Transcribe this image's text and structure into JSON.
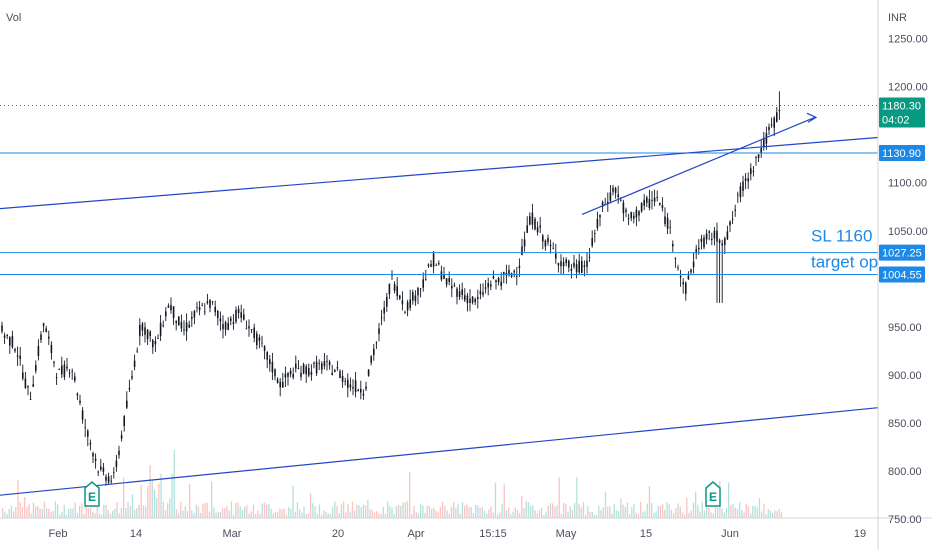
{
  "chart_data": {
    "type": "candlestick",
    "volume_label": "Vol",
    "currency": "INR",
    "ylim": [
      718,
      1290
    ],
    "y_ticks": [
      {
        "value": 1250,
        "label": "1250.00"
      },
      {
        "value": 1200,
        "label": "1200.00"
      },
      {
        "value": 1100,
        "label": "1100.00"
      },
      {
        "value": 1050,
        "label": "1050.00"
      },
      {
        "value": 950,
        "label": "950.00"
      },
      {
        "value": 900,
        "label": "900.00"
      },
      {
        "value": 850,
        "label": "850.00"
      },
      {
        "value": 800,
        "label": "800.00"
      },
      {
        "value": 750,
        "label": "750.00"
      }
    ],
    "x_ticks": [
      "Feb",
      "14",
      "Mar",
      "20",
      "Apr",
      "15:15",
      "May",
      "15",
      "Jun",
      "19"
    ],
    "last_price": {
      "value": 1180.3,
      "label": "1180.30",
      "countdown": "04:02",
      "color": "#089981"
    },
    "horizontal_levels": [
      {
        "value": 1130.9,
        "label": "1130.90"
      },
      {
        "value": 1027.25,
        "label": "1027.25"
      },
      {
        "value": 1004.55,
        "label": "1004.55"
      }
    ],
    "annotations": [
      "SL 1160",
      "target op"
    ],
    "earnings_markers": [
      "E",
      "E"
    ],
    "price_series": [
      {
        "t": "Jan 31",
        "v": 945
      },
      {
        "t": "Feb 4",
        "v": 930
      },
      {
        "t": "Feb 6",
        "v": 875
      },
      {
        "t": "Feb 8",
        "v": 955
      },
      {
        "t": "Feb 10",
        "v": 900
      },
      {
        "t": "Feb 12",
        "v": 910
      },
      {
        "t": "Feb 14",
        "v": 845
      },
      {
        "t": "Feb 17",
        "v": 800
      },
      {
        "t": "Feb 18",
        "v": 790
      },
      {
        "t": "Feb 20",
        "v": 870
      },
      {
        "t": "Feb 22",
        "v": 955
      },
      {
        "t": "Feb 24",
        "v": 930
      },
      {
        "t": "Feb 26",
        "v": 975
      },
      {
        "t": "Feb 28",
        "v": 945
      },
      {
        "t": "Mar 2",
        "v": 965
      },
      {
        "t": "Mar 4",
        "v": 975
      },
      {
        "t": "Mar 7",
        "v": 950
      },
      {
        "t": "Mar 10",
        "v": 965
      },
      {
        "t": "Mar 12",
        "v": 945
      },
      {
        "t": "Mar 14",
        "v": 920
      },
      {
        "t": "Mar 16",
        "v": 890
      },
      {
        "t": "Mar 18",
        "v": 905
      },
      {
        "t": "Mar 20",
        "v": 905
      },
      {
        "t": "Mar 22",
        "v": 910
      },
      {
        "t": "Mar 24",
        "v": 905
      },
      {
        "t": "Mar 27",
        "v": 890
      },
      {
        "t": "Mar 29",
        "v": 885
      },
      {
        "t": "Mar 31",
        "v": 940
      },
      {
        "t": "Apr 2",
        "v": 1000
      },
      {
        "t": "Apr 5",
        "v": 970
      },
      {
        "t": "Apr 7",
        "v": 990
      },
      {
        "t": "Apr 10",
        "v": 1020
      },
      {
        "t": "Apr 13",
        "v": 995
      },
      {
        "t": "Apr 17",
        "v": 985
      },
      {
        "t": "Apr 20",
        "v": 975
      },
      {
        "t": "Apr 24",
        "v": 995
      },
      {
        "t": "Apr 27",
        "v": 1000
      },
      {
        "t": "May 2",
        "v": 1010
      },
      {
        "t": "May 4",
        "v": 1065
      },
      {
        "t": "May 6",
        "v": 1040
      },
      {
        "t": "May 9",
        "v": 1020
      },
      {
        "t": "May 12",
        "v": 1010
      },
      {
        "t": "May 15",
        "v": 1015
      },
      {
        "t": "May 17",
        "v": 1070
      },
      {
        "t": "May 19",
        "v": 1095
      },
      {
        "t": "May 21",
        "v": 1060
      },
      {
        "t": "May 23",
        "v": 1075
      },
      {
        "t": "May 25",
        "v": 1085
      },
      {
        "t": "May 27",
        "v": 1050
      },
      {
        "t": "May 28",
        "v": 985
      },
      {
        "t": "May 29",
        "v": 1035
      },
      {
        "t": "May 31",
        "v": 1045
      },
      {
        "t": "Jun 2",
        "v": 1040
      },
      {
        "t": "Jun 4",
        "v": 1090
      },
      {
        "t": "Jun 6",
        "v": 1120
      },
      {
        "t": "Jun 8",
        "v": 1150
      },
      {
        "t": "Jun 9",
        "v": 1180
      }
    ]
  }
}
